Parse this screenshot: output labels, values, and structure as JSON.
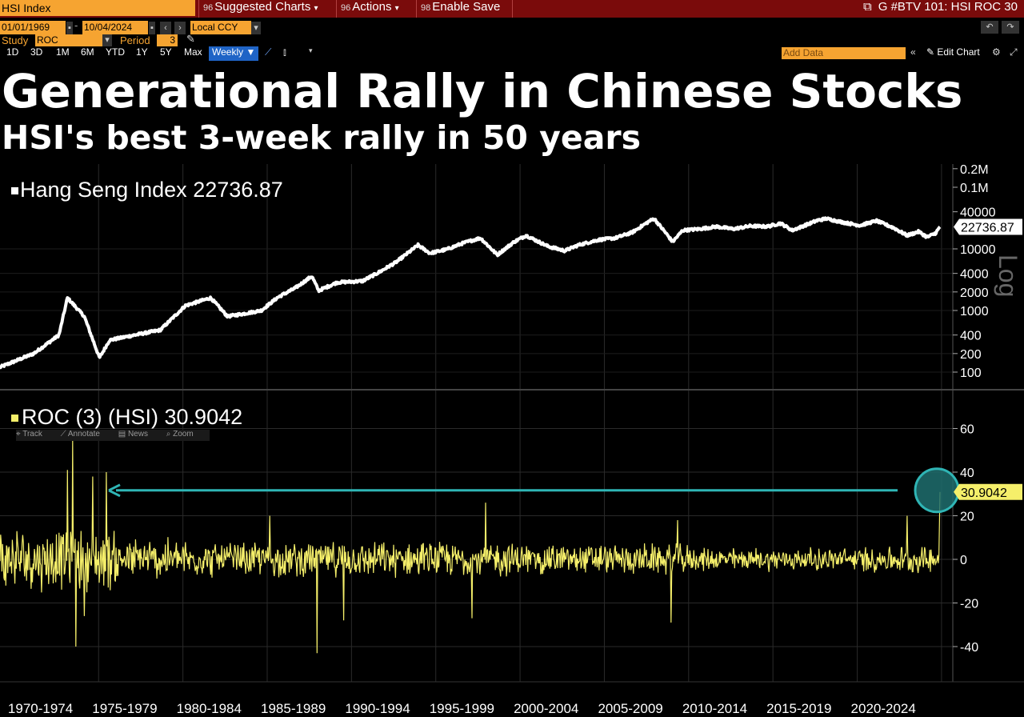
{
  "toolbar": {
    "ticker": "HSI Index",
    "menu": [
      {
        "num": "96",
        "label": "Suggested Charts"
      },
      {
        "num": "96",
        "label": "Actions"
      },
      {
        "num": "98",
        "label": "Enable Save"
      }
    ],
    "right_title": "G #BTV 101: HSI ROC 30",
    "start_date": "01/01/1969",
    "end_date": "10/04/2024",
    "currency": "Local CCY",
    "study_label": "Study",
    "study_value": "ROC",
    "period_label": "Period",
    "period_value": "3",
    "ranges": [
      "1D",
      "3D",
      "1M",
      "6M",
      "YTD",
      "1Y",
      "5Y",
      "Max"
    ],
    "frequency": "Weekly",
    "add_data": "Add Data",
    "edit_chart": "Edit Chart"
  },
  "headline": {
    "title": "Generational Rally in Chinese Stocks",
    "subtitle": "HSI's best 3-week rally in 50 years"
  },
  "colors": {
    "background": "#000000",
    "grid": "#2a2a2a",
    "price_line": "#ffffff",
    "roc_line": "#f5ef6a",
    "arrow": "#2fb5b5",
    "circle": "#1e6e6e",
    "accent": "#f6a431",
    "toolbar_red": "#7a0b0b"
  },
  "subtools": [
    "Track",
    "Annotate",
    "News",
    "Zoom"
  ],
  "chart_data": [
    {
      "type": "line",
      "series": [
        {
          "name": "Hang Seng Index",
          "last_value": "22736.87"
        }
      ],
      "yscale": "log",
      "y_tick_labels": [
        "0.2M",
        "0.1M",
        "40000",
        "10000",
        "4000",
        "2000",
        "1000",
        "400",
        "200",
        "100"
      ],
      "y_tick_values": [
        200000,
        100000,
        40000,
        10000,
        4000,
        2000,
        1000,
        400,
        200,
        100
      ],
      "scale_label": "Log",
      "x": [
        1969.0,
        1971.0,
        1972.5,
        1973.0,
        1974.0,
        1974.9,
        1975.5,
        1977.0,
        1978.5,
        1980.0,
        1981.5,
        1982.5,
        1983.3,
        1984.5,
        1985.5,
        1986.5,
        1987.5,
        1987.9,
        1989.0,
        1990.5,
        1991.5,
        1992.5,
        1993.8,
        1994.5,
        1995.5,
        1996.5,
        1997.5,
        1998.5,
        1999.5,
        2000.2,
        2001.5,
        2002.5,
        2003.3,
        2004.5,
        2005.5,
        2006.5,
        2007.5,
        2007.8,
        2008.5,
        2008.9,
        2009.5,
        2010.5,
        2011.5,
        2012.5,
        2013.5,
        2014.5,
        2015.3,
        2016.0,
        2017.5,
        2018.0,
        2019.0,
        2020.0,
        2021.0,
        2022.0,
        2022.8,
        2023.5,
        2024.0,
        2024.5,
        2024.76
      ],
      "y": [
        120,
        200,
        400,
        1600,
        800,
        170,
        330,
        400,
        480,
        1200,
        1600,
        800,
        870,
        1000,
        1650,
        2300,
        3600,
        2100,
        2850,
        3000,
        4200,
        6100,
        11500,
        8500,
        9800,
        12500,
        15000,
        8000,
        13000,
        16500,
        11000,
        9300,
        11500,
        14000,
        15000,
        18500,
        28000,
        31000,
        18000,
        13000,
        20000,
        21000,
        23000,
        21000,
        23500,
        23000,
        26000,
        20000,
        29000,
        31000,
        27000,
        24000,
        28500,
        22000,
        16500,
        19000,
        15500,
        18000,
        22736.87
      ]
    },
    {
      "type": "line",
      "series": [
        {
          "name": "ROC (3) (HSI)",
          "last_value": "30.9042"
        }
      ],
      "ylim": [
        -45,
        72
      ],
      "y_ticks": [
        60,
        40,
        20,
        0,
        -20,
        -40
      ],
      "categories": [
        "1970-1974",
        "1975-1979",
        "1980-1984",
        "1985-1989",
        "1990-1994",
        "1995-1999",
        "2000-2004",
        "2005-2009",
        "2010-2014",
        "2015-2019",
        "2020-2024"
      ],
      "x_range": [
        1969.0,
        2024.76
      ],
      "spikes": [
        {
          "x": 1973.3,
          "y": 55
        },
        {
          "x": 1973.0,
          "y": 41
        },
        {
          "x": 1974.5,
          "y": 38
        },
        {
          "x": 1975.3,
          "y": 40
        },
        {
          "x": 1973.5,
          "y": -40
        },
        {
          "x": 1974.0,
          "y": -26
        },
        {
          "x": 1985.0,
          "y": 20
        },
        {
          "x": 1987.8,
          "y": -43
        },
        {
          "x": 1989.4,
          "y": -28
        },
        {
          "x": 1997.8,
          "y": 26
        },
        {
          "x": 1997.0,
          "y": -27
        },
        {
          "x": 2008.8,
          "y": -29
        },
        {
          "x": 2009.2,
          "y": 18
        },
        {
          "x": 2022.8,
          "y": 20
        },
        {
          "x": 2024.76,
          "y": 30.9042
        }
      ]
    }
  ]
}
